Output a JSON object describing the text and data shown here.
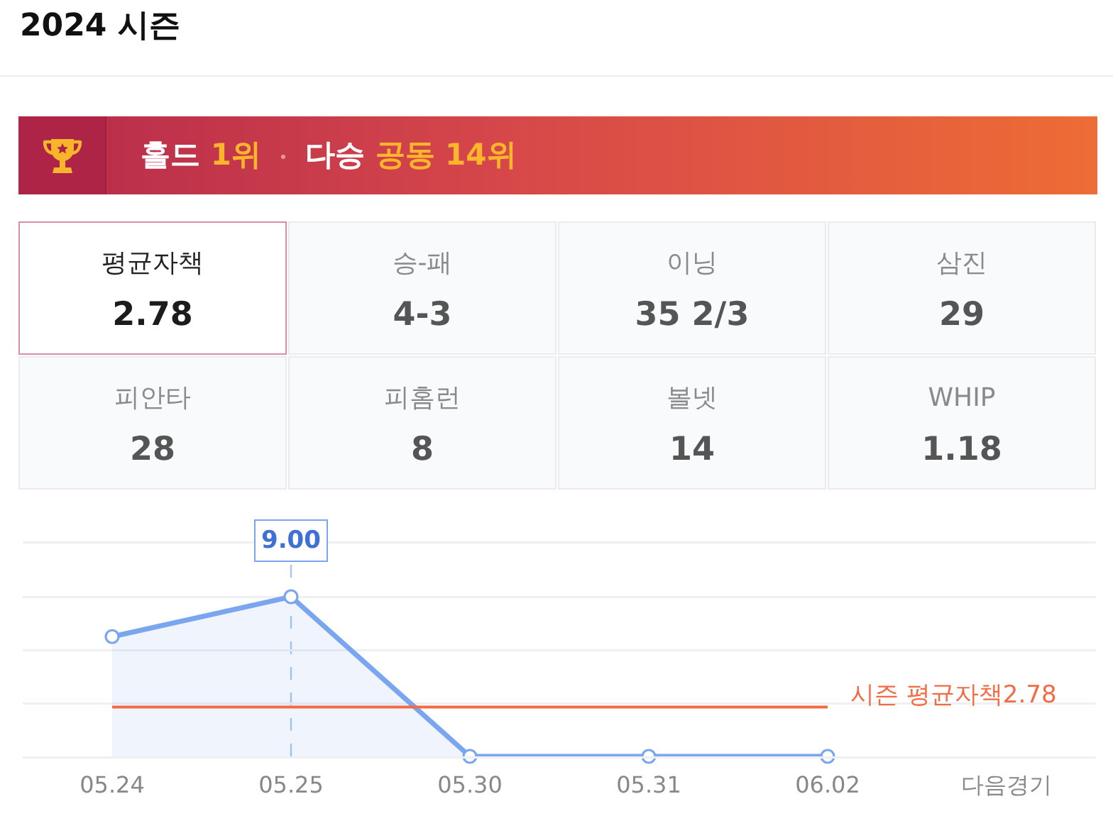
{
  "chart_data": [
    {
      "type": "other",
      "title": "2024 시즌",
      "annotations": [
        "홀드 1위",
        "다승 공동 14위"
      ],
      "categories": [
        "평균자책",
        "승-패",
        "이닝",
        "삼진",
        "피안타",
        "피홈런",
        "볼넷",
        "WHIP"
      ],
      "value_labels": [
        "2.78",
        "4-3",
        "35 2/3",
        "29",
        "28",
        "8",
        "14",
        "1.18"
      ]
    },
    {
      "type": "area",
      "categories": [
        "05.24",
        "05.25",
        "05.30",
        "05.31",
        "06.02",
        "다음경기"
      ],
      "values": [
        6.75,
        9.0,
        0,
        0,
        0,
        null
      ],
      "color": "#7aa5ef",
      "value_labels": [
        null,
        "9.00",
        null,
        null,
        null,
        null
      ],
      "ylim": [
        0,
        12
      ],
      "yticks": [
        {
          "value": 0,
          "label": null
        },
        {
          "value": 3,
          "label": null
        },
        {
          "value": 6,
          "label": null
        },
        {
          "value": 9,
          "label": null
        },
        {
          "value": 12,
          "label": null
        }
      ],
      "tick_labels": "x",
      "grid": "y",
      "marker": "circle",
      "line_style": "solid",
      "ref_lines": [
        {
          "axis": "y",
          "value": 2.78,
          "label": "시즌 평균자책2.78",
          "color": "#f26b43"
        },
        {
          "axis": "x",
          "value": "05.25",
          "line_style": "dashed",
          "color": "#a9c4f5"
        }
      ]
    }
  ]
}
